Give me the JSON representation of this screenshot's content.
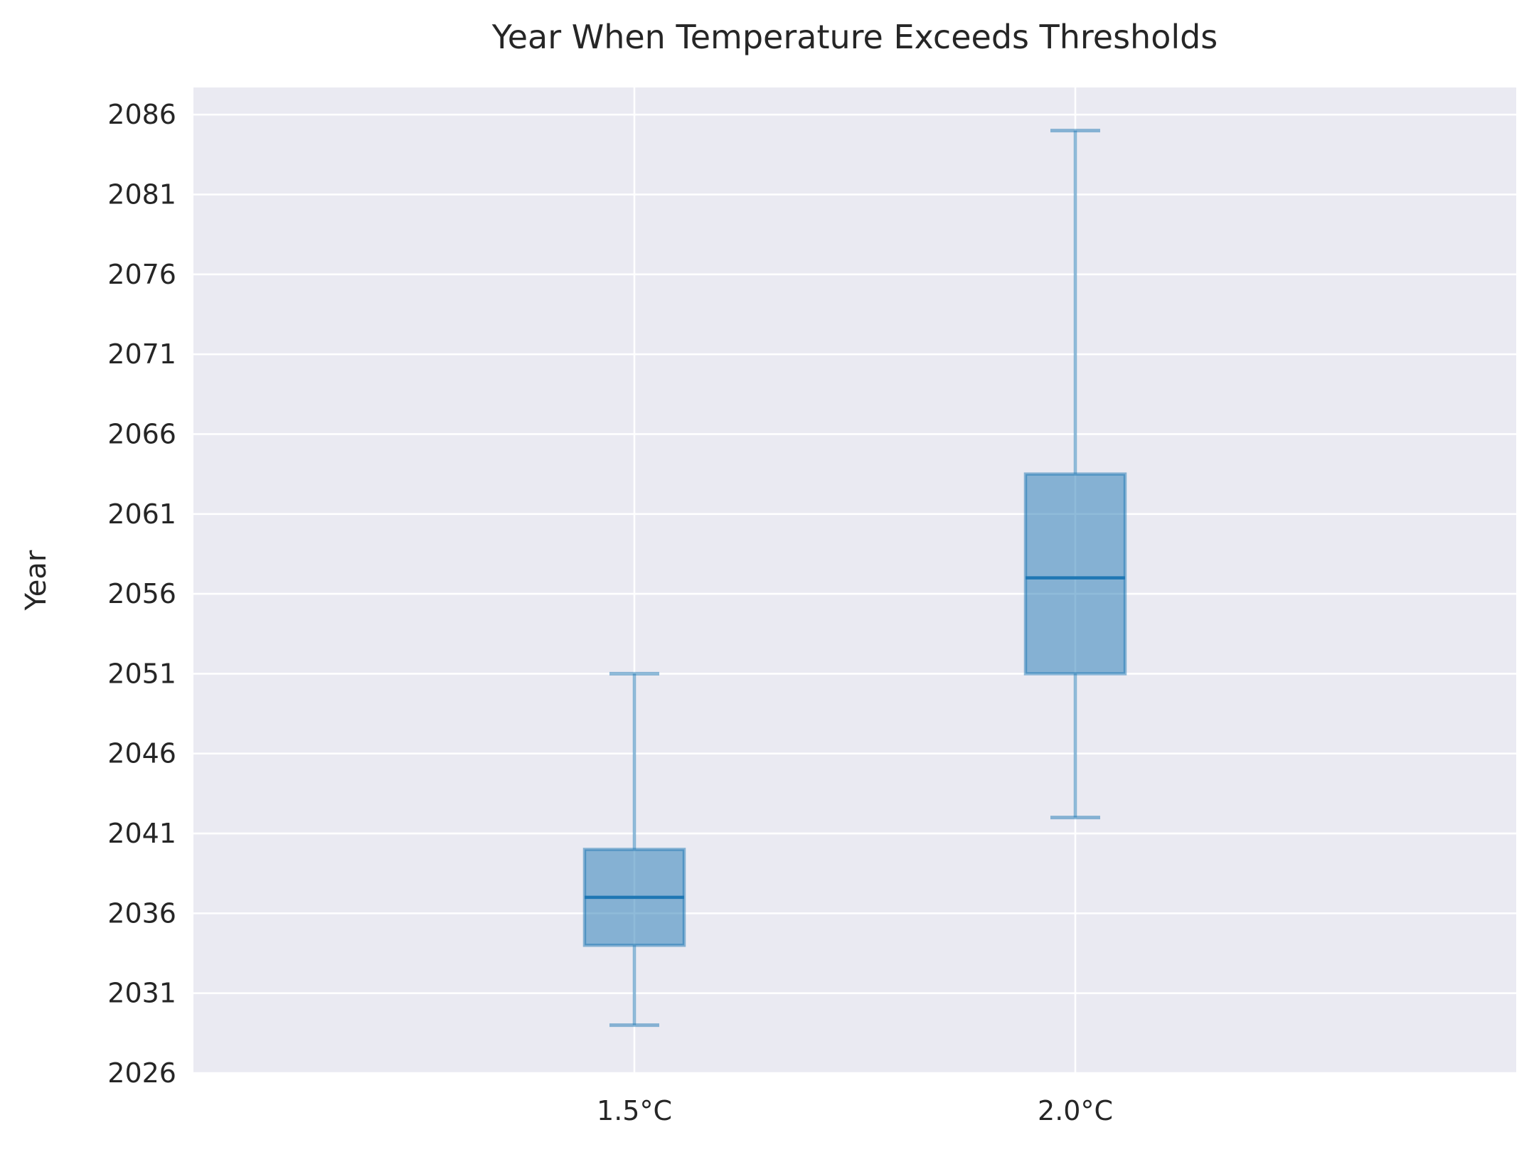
{
  "chart_data": {
    "type": "box",
    "title": "Year When Temperature Exceeds Thresholds",
    "xlabel": "",
    "ylabel": "Year",
    "categories": [
      "1.5°C",
      "2.0°C"
    ],
    "boxes": [
      {
        "category": "1.5°C",
        "whisker_low": 2029,
        "q1": 2034,
        "median": 2037,
        "q3": 2040,
        "whisker_high": 2051
      },
      {
        "category": "2.0°C",
        "whisker_low": 2042,
        "q1": 2051,
        "median": 2057,
        "q3": 2063.5,
        "whisker_high": 2085
      }
    ],
    "yticks": [
      2026,
      2031,
      2036,
      2041,
      2046,
      2051,
      2056,
      2061,
      2066,
      2071,
      2076,
      2081,
      2086
    ],
    "ylim": [
      2026,
      2087.7
    ],
    "grid": true,
    "colors": {
      "plot_background": "#eaeaf2",
      "grid": "#ffffff",
      "box_fill": "#1f77b4",
      "median": "#1f77b4",
      "text": "#262626"
    }
  }
}
